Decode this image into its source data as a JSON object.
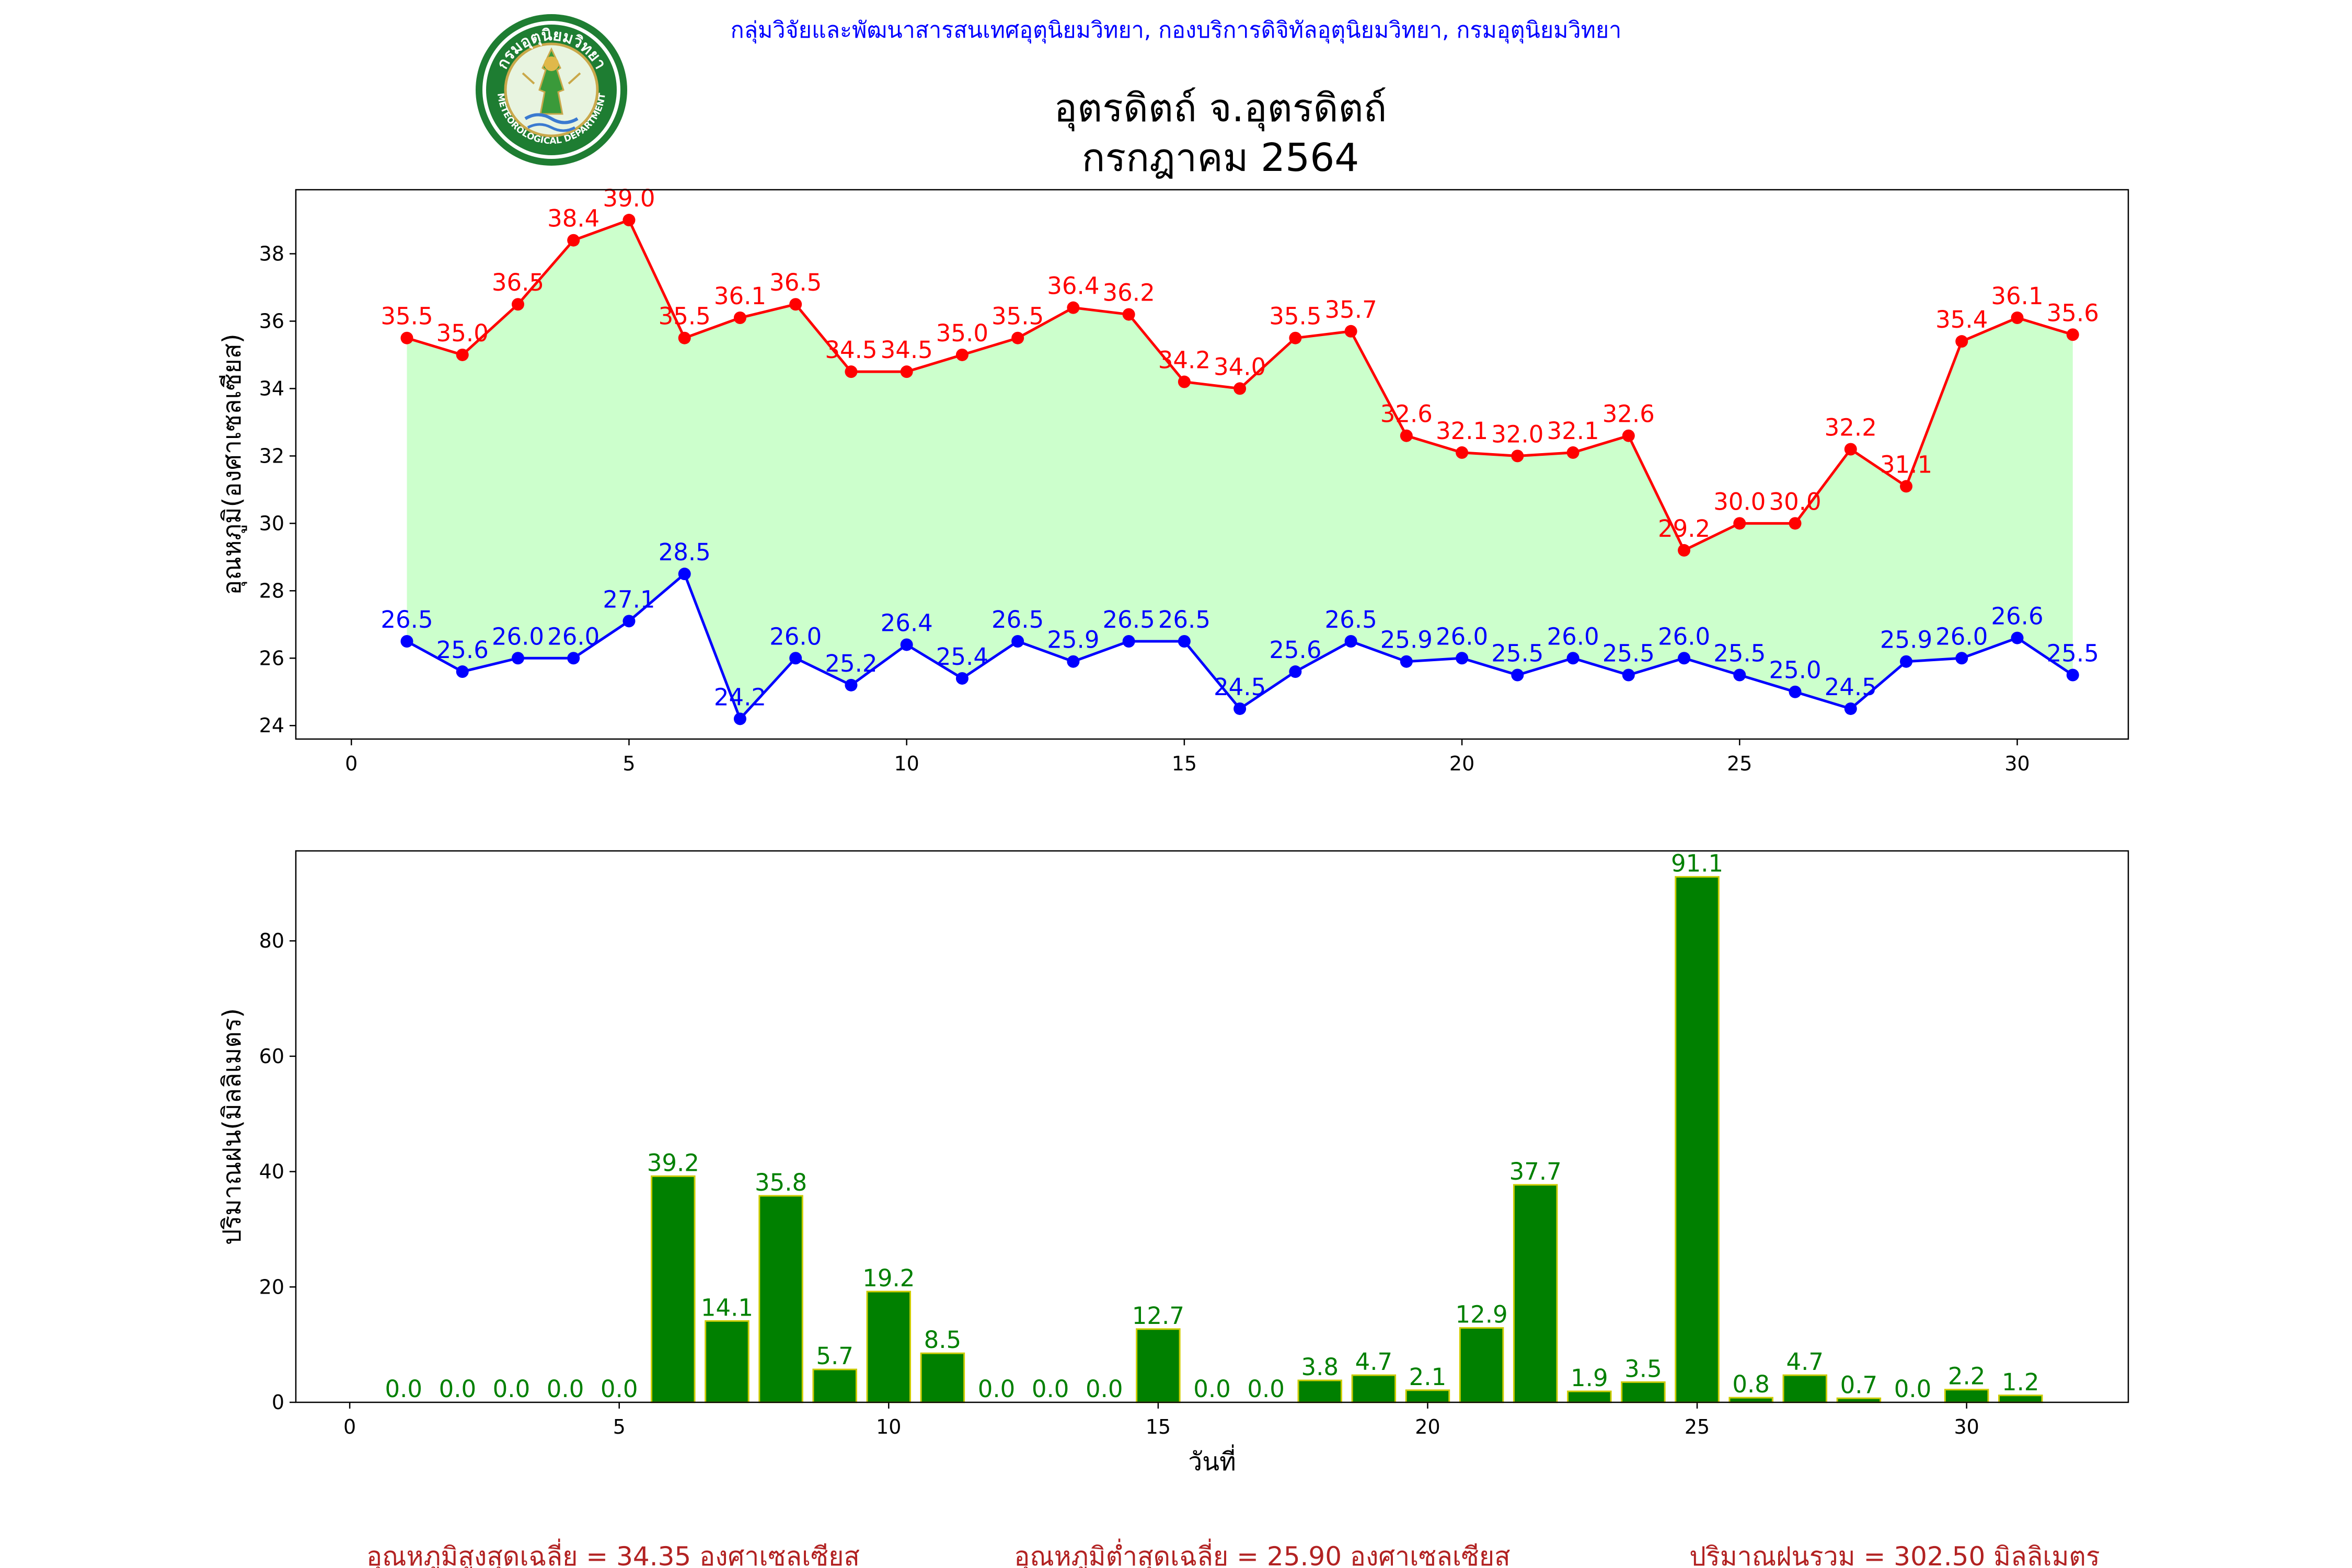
{
  "header": {
    "org_line": "กลุ่มวิจัยและพัฒนาสารสนเทศอุตุนิยมวิทยา, กองบริการดิจิทัลอุตุนิยมวิทยา, กรมอุตุนิยมวิทยา",
    "title_line1": "อุตรดิตถ์ จ.อุตรดิตถ์",
    "title_line2": "กรกฎาคม 2564"
  },
  "logo": {
    "top_text": "กรมอุตุนิยมวิทยา",
    "bottom_text": "METEOROLOGICAL DEPARTMENT"
  },
  "chart_data": [
    {
      "type": "line",
      "ylabel": "อุณหภูมิ(องศาเซลเซียส)",
      "xlabel": "",
      "xlim": [
        -1,
        32
      ],
      "ylim": [
        23.6,
        39.9
      ],
      "xticks": [
        0,
        5,
        10,
        15,
        20,
        25,
        30
      ],
      "yticks": [
        24,
        26,
        28,
        30,
        32,
        34,
        36,
        38
      ],
      "fill_between": true,
      "fill_color": "#ccffcc",
      "x": [
        1,
        2,
        3,
        4,
        5,
        6,
        7,
        8,
        9,
        10,
        11,
        12,
        13,
        14,
        15,
        16,
        17,
        18,
        19,
        20,
        21,
        22,
        23,
        24,
        25,
        26,
        27,
        28,
        29,
        30,
        31
      ],
      "series": [
        {
          "color": "#ff0000",
          "values": [
            35.5,
            35.0,
            36.5,
            38.4,
            39.0,
            35.5,
            36.1,
            36.5,
            34.5,
            34.5,
            35.0,
            35.5,
            36.4,
            36.2,
            34.2,
            34.0,
            35.5,
            35.7,
            32.6,
            32.1,
            32.0,
            32.1,
            32.6,
            29.2,
            30.0,
            30.0,
            32.2,
            31.1,
            35.4,
            36.1,
            35.6
          ]
        },
        {
          "color": "#0000ff",
          "values": [
            26.5,
            25.6,
            26.0,
            26.0,
            27.1,
            28.5,
            24.2,
            26.0,
            25.2,
            26.4,
            25.4,
            26.5,
            25.9,
            26.5,
            26.5,
            24.5,
            25.6,
            26.5,
            25.9,
            26.0,
            25.5,
            26.0,
            25.5,
            26.0,
            25.5,
            25.0,
            24.5,
            25.9,
            26.0,
            26.6,
            25.5
          ]
        }
      ]
    },
    {
      "type": "bar",
      "ylabel": "ปริมาณฝน(มิลลิเมตร)",
      "xlabel": "วันที่",
      "xlim": [
        -1,
        33
      ],
      "ylim": [
        0,
        95.6
      ],
      "xticks": [
        0,
        5,
        10,
        15,
        20,
        25,
        30
      ],
      "yticks": [
        0,
        20,
        40,
        60,
        80
      ],
      "bar_color": "#008000",
      "bar_edge_color": "#cccc00",
      "label_color": "#008000",
      "categories": [
        1,
        2,
        3,
        4,
        5,
        6,
        7,
        8,
        9,
        10,
        11,
        12,
        13,
        14,
        15,
        16,
        17,
        18,
        19,
        20,
        21,
        22,
        23,
        24,
        25,
        26,
        27,
        28,
        29,
        30,
        31
      ],
      "values": [
        0.0,
        0.0,
        0.0,
        0.0,
        0.0,
        39.2,
        14.1,
        35.8,
        5.7,
        19.2,
        8.5,
        0.0,
        0.0,
        0.0,
        12.7,
        0.0,
        0.0,
        3.8,
        4.7,
        2.1,
        12.9,
        37.7,
        1.9,
        3.5,
        91.1,
        0.8,
        4.7,
        0.7,
        0.0,
        2.2,
        1.2
      ]
    }
  ],
  "footer": {
    "avg_max": "อุณหภูมิสูงสุดเฉลี่ย = 34.35 องศาเซลเซียส",
    "avg_min": "อุณหภูมิต่ำสุดเฉลี่ย = 25.90 องศาเซลเซียส",
    "total_rain": "ปริมาณฝนรวม = 302.50 มิลลิเมตร",
    "color": "#b22222"
  }
}
